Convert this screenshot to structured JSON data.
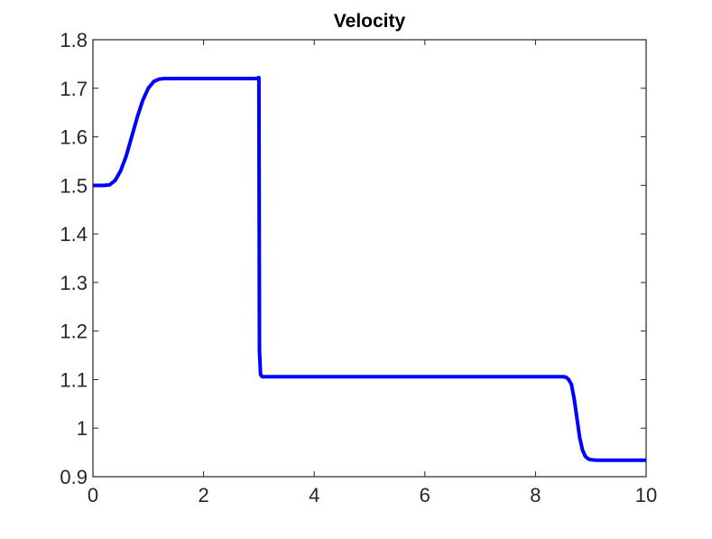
{
  "chart_data": {
    "type": "line",
    "title": "Velocity",
    "xlabel": "",
    "ylabel": "",
    "xlim": [
      0,
      10
    ],
    "ylim": [
      0.9,
      1.8
    ],
    "x_ticks": [
      0,
      2,
      4,
      6,
      8,
      10
    ],
    "x_tick_labels": [
      "0",
      "2",
      "4",
      "6",
      "8",
      "10"
    ],
    "y_ticks": [
      0.9,
      1.0,
      1.1,
      1.2,
      1.3,
      1.4,
      1.5,
      1.6,
      1.7,
      1.8
    ],
    "y_tick_labels": [
      "0.9",
      "1",
      "1.1",
      "1.2",
      "1.3",
      "1.4",
      "1.5",
      "1.6",
      "1.7",
      "1.8"
    ],
    "grid": false,
    "legend": "none",
    "colors": {
      "line": "#0000ff",
      "axes": "#262626",
      "background": "#ffffff"
    },
    "series": [
      {
        "x": [
          0,
          0.1,
          0.2,
          0.3,
          0.4,
          0.5,
          0.6,
          0.7,
          0.8,
          0.9,
          1.0,
          1.1,
          1.2,
          1.3,
          1.4,
          1.5,
          1.7,
          2.0,
          2.5,
          2.9,
          2.95,
          3.0,
          3.01,
          3.03,
          3.06,
          3.1,
          3.5,
          4.0,
          5.0,
          6.0,
          7.0,
          8.0,
          8.4,
          8.5,
          8.55,
          8.6,
          8.65,
          8.7,
          8.75,
          8.8,
          8.85,
          8.9,
          8.95,
          9.0,
          9.1,
          9.3,
          9.6,
          10.0
        ],
        "y": [
          1.5,
          1.5,
          1.5,
          1.501,
          1.51,
          1.53,
          1.56,
          1.6,
          1.64,
          1.675,
          1.7,
          1.714,
          1.719,
          1.72,
          1.72,
          1.72,
          1.72,
          1.72,
          1.72,
          1.72,
          1.72,
          1.722,
          1.16,
          1.11,
          1.106,
          1.106,
          1.106,
          1.106,
          1.106,
          1.106,
          1.106,
          1.106,
          1.106,
          1.106,
          1.105,
          1.1,
          1.09,
          1.06,
          1.02,
          0.98,
          0.955,
          0.942,
          0.937,
          0.935,
          0.934,
          0.934,
          0.934,
          0.934
        ]
      }
    ]
  }
}
